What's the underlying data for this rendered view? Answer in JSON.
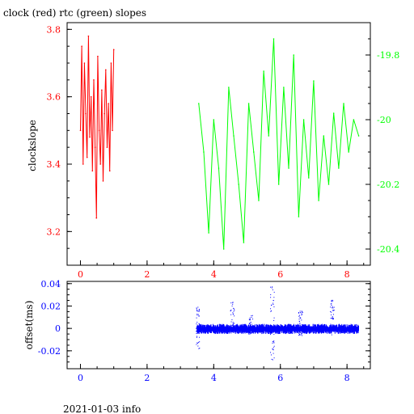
{
  "title": "clock (red) rtc (green) slopes",
  "footer": "2021-01-03 info",
  "colors": {
    "red": "#ff0000",
    "green": "#00ff00",
    "blue": "#0000ff",
    "axis": "#000000"
  },
  "chart_data": [
    {
      "type": "line",
      "name": "slopes",
      "ylabel": "clockslope",
      "xlim": [
        -0.4,
        8.7
      ],
      "xticks": [
        0,
        2,
        4,
        6,
        8
      ],
      "ylim_left": [
        3.1,
        3.82
      ],
      "yticks_left": [
        3.2,
        3.4,
        3.6,
        3.8
      ],
      "ylim_right": [
        -20.45,
        -19.7
      ],
      "yticks_right": [
        -19.8,
        -20,
        -20.2,
        -20.4
      ],
      "series": [
        {
          "axis": "left",
          "color": "#ff0000",
          "x": [
            0.0,
            0.04,
            0.08,
            0.12,
            0.16,
            0.2,
            0.24,
            0.28,
            0.32,
            0.36,
            0.4,
            0.44,
            0.48,
            0.52,
            0.56,
            0.6,
            0.64,
            0.68,
            0.72,
            0.76,
            0.8,
            0.84,
            0.88,
            0.92,
            0.96,
            1.0
          ],
          "y": [
            3.5,
            3.75,
            3.4,
            3.7,
            3.55,
            3.42,
            3.78,
            3.48,
            3.6,
            3.38,
            3.65,
            3.45,
            3.24,
            3.72,
            3.5,
            3.4,
            3.62,
            3.35,
            3.55,
            3.68,
            3.45,
            3.58,
            3.38,
            3.7,
            3.5,
            3.74
          ]
        },
        {
          "axis": "right",
          "color": "#00ff00",
          "x": [
            3.55,
            3.7,
            3.85,
            4.0,
            4.15,
            4.3,
            4.45,
            4.6,
            4.75,
            4.9,
            5.05,
            5.2,
            5.35,
            5.5,
            5.65,
            5.8,
            5.95,
            6.1,
            6.25,
            6.4,
            6.55,
            6.7,
            6.85,
            7.0,
            7.15,
            7.3,
            7.45,
            7.6,
            7.75,
            7.9,
            8.05,
            8.2,
            8.35
          ],
          "y": [
            -19.95,
            -20.1,
            -20.35,
            -20.0,
            -20.15,
            -20.4,
            -19.9,
            -20.05,
            -20.2,
            -20.38,
            -19.95,
            -20.1,
            -20.25,
            -19.85,
            -20.05,
            -19.75,
            -20.2,
            -19.9,
            -20.15,
            -19.8,
            -20.3,
            -20.0,
            -20.18,
            -19.88,
            -20.25,
            -20.05,
            -20.2,
            -19.98,
            -20.15,
            -19.95,
            -20.1,
            -20.0,
            -20.05
          ]
        }
      ]
    },
    {
      "type": "scatter",
      "name": "offsets",
      "ylabel": "offset(ms)",
      "xlim": [
        -0.4,
        8.7
      ],
      "xticks": [
        0,
        2,
        4,
        6,
        8
      ],
      "ylim": [
        -0.036,
        0.042
      ],
      "yticks": [
        0.04,
        0.02,
        0,
        -0.02
      ],
      "series": [
        {
          "color": "#0000ff",
          "band_x": [
            3.5,
            8.35
          ],
          "band_y": [
            -0.005,
            0.004
          ],
          "spikes": [
            {
              "x": 5.75,
              "ymin": -0.028,
              "ymax": 0.038
            },
            {
              "x": 3.52,
              "ymin": -0.018,
              "ymax": 0.02
            },
            {
              "x": 7.55,
              "ymin": -0.006,
              "ymax": 0.026
            },
            {
              "x": 4.55,
              "ymin": -0.004,
              "ymax": 0.024
            },
            {
              "x": 6.6,
              "ymin": -0.006,
              "ymax": 0.016
            },
            {
              "x": 5.1,
              "ymin": -0.006,
              "ymax": 0.012
            }
          ]
        }
      ]
    }
  ]
}
